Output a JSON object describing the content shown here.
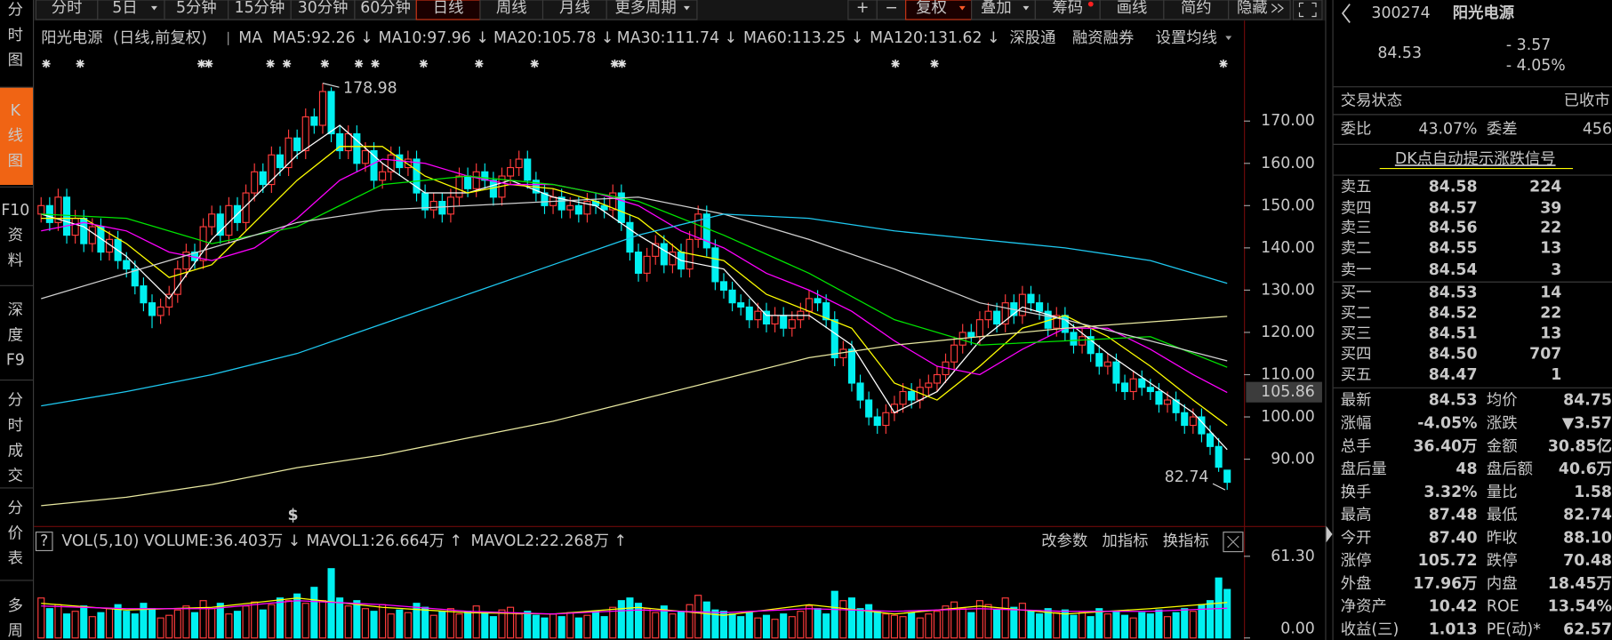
{
  "toolbar": {
    "tabs": [
      "分时",
      "5日",
      "5分钟",
      "15分钟",
      "30分钟",
      "60分钟",
      "日线",
      "周线",
      "月线",
      "更多周期"
    ],
    "active_tab": 6,
    "tools": [
      "+",
      "−",
      "复权",
      "叠加",
      "筹码",
      "画线",
      "简约",
      "隐藏"
    ],
    "active_tool": 2
  },
  "sidebar": {
    "items": [
      "分时图",
      "K线图",
      "F10资料",
      "深度F9",
      "分时成交",
      "分价表",
      "多周"
    ],
    "active": 1
  },
  "chart_data": {
    "type": "candlestick",
    "stock_name": "阳光电源",
    "period_label": "(日线,前复权)",
    "ma_label": "MA",
    "links": [
      "深股通",
      "融资融券",
      "设置均线"
    ],
    "up_color": "#ff3c3c",
    "down_color": "#00f0f0",
    "ylim": [
      74.68,
      186.5
    ],
    "yticks": [
      {
        "value": 90,
        "label": "90.00"
      },
      {
        "value": 100,
        "label": "100.00"
      },
      {
        "value": 110,
        "label": "110.00"
      },
      {
        "value": 120,
        "label": "120.00"
      },
      {
        "value": 130,
        "label": "130.00"
      },
      {
        "value": 140,
        "label": "140.00"
      },
      {
        "value": 150,
        "label": "150.00"
      },
      {
        "value": 160,
        "label": "160.00"
      },
      {
        "value": 170,
        "label": "170.00"
      }
    ],
    "grid": false,
    "cursor_price": 105.86,
    "dividend_marker": "$",
    "open": [
      148,
      150,
      146,
      152,
      143,
      147,
      141,
      145,
      139,
      142,
      137,
      135,
      131,
      127,
      124,
      126,
      129,
      135,
      139,
      137,
      145,
      148,
      143,
      150,
      146,
      153,
      158,
      155,
      162,
      159,
      166,
      163,
      171,
      169,
      177,
      167,
      163,
      167,
      160,
      163,
      156,
      158,
      162,
      159,
      161,
      153,
      149,
      151,
      148,
      152,
      157,
      154,
      158,
      156,
      152,
      157,
      159,
      161,
      156,
      153,
      150,
      152,
      149,
      150,
      148,
      151,
      150,
      149,
      153,
      146,
      139,
      134,
      138,
      141,
      136,
      139,
      135,
      142,
      148,
      140,
      132,
      130,
      127,
      126,
      123,
      125,
      122,
      124,
      121,
      123,
      125,
      128,
      127,
      123,
      114,
      116,
      108,
      104,
      100,
      98,
      101,
      103,
      106,
      104,
      107,
      108,
      110,
      113,
      117,
      120,
      119,
      123,
      125,
      122,
      127,
      124,
      129,
      127,
      125,
      121,
      124,
      120,
      117,
      119,
      115,
      112,
      113,
      108,
      106,
      109,
      107,
      106,
      103,
      104,
      101,
      98,
      100,
      96,
      93,
      87.4
    ],
    "high": [
      152,
      152,
      154,
      154,
      149,
      149,
      147,
      147,
      144,
      144,
      139,
      137,
      133,
      129,
      128,
      131,
      137,
      141,
      141,
      147,
      150,
      150,
      152,
      152,
      155,
      160,
      160,
      164,
      164,
      168,
      168,
      173,
      173,
      178.98,
      178,
      169,
      169,
      169,
      165,
      165,
      160,
      164,
      164,
      163,
      163,
      155,
      153,
      153,
      154,
      159,
      159,
      160,
      160,
      158,
      159,
      161,
      163,
      163,
      158,
      155,
      154,
      154,
      152,
      152,
      153,
      153,
      152,
      155,
      155,
      148,
      141,
      140,
      143,
      143,
      141,
      141,
      144,
      150,
      150,
      142,
      134,
      132,
      129,
      128,
      127,
      127,
      126,
      126,
      125,
      127,
      130,
      130,
      129,
      125,
      118,
      118,
      110,
      106,
      102,
      103,
      105,
      108,
      108,
      109,
      110,
      112,
      115,
      119,
      122,
      122,
      125,
      127,
      127,
      129,
      129,
      131,
      131,
      129,
      127,
      126,
      126,
      122,
      121,
      121,
      117,
      115,
      115,
      110,
      111,
      111,
      109,
      108,
      106,
      106,
      103,
      102,
      102,
      98,
      95,
      87.48
    ],
    "low": [
      146,
      144,
      144,
      141,
      141,
      139,
      139,
      137,
      137,
      135,
      133,
      129,
      125,
      121,
      122,
      124,
      127,
      133,
      135,
      135,
      143,
      141,
      141,
      144,
      144,
      151,
      153,
      153,
      157,
      157,
      161,
      161,
      167,
      167,
      165,
      161,
      161,
      158,
      158,
      154,
      154,
      156,
      157,
      157,
      151,
      147,
      147,
      146,
      146,
      150,
      152,
      152,
      154,
      150,
      150,
      155,
      157,
      154,
      151,
      148,
      148,
      147,
      147,
      146,
      146,
      148,
      147,
      147,
      144,
      137,
      132,
      132,
      136,
      134,
      134,
      133,
      133,
      140,
      138,
      130,
      128,
      125,
      124,
      121,
      121,
      120,
      120,
      119,
      119,
      121,
      123,
      125,
      121,
      112,
      112,
      106,
      102,
      98,
      96,
      96,
      99,
      101,
      102,
      102,
      105,
      106,
      108,
      111,
      115,
      117,
      117,
      121,
      120,
      120,
      122,
      122,
      125,
      123,
      119,
      119,
      118,
      115,
      115,
      113,
      110,
      110,
      106,
      104,
      104,
      105,
      104,
      101,
      101,
      99,
      96,
      96,
      94,
      91,
      87,
      82.74
    ],
    "close": [
      150,
      146,
      152,
      143,
      147,
      141,
      145,
      139,
      142,
      137,
      135,
      131,
      127,
      124,
      126,
      129,
      135,
      139,
      137,
      145,
      148,
      143,
      150,
      146,
      153,
      158,
      155,
      162,
      159,
      166,
      163,
      171,
      169,
      177,
      167,
      163,
      167,
      160,
      163,
      156,
      158,
      162,
      159,
      161,
      153,
      149,
      151,
      148,
      152,
      157,
      154,
      158,
      156,
      152,
      157,
      159,
      161,
      156,
      153,
      150,
      152,
      149,
      150,
      148,
      151,
      150,
      149,
      153,
      146,
      139,
      134,
      138,
      141,
      136,
      139,
      135,
      142,
      148,
      140,
      132,
      130,
      127,
      126,
      123,
      125,
      122,
      124,
      121,
      123,
      125,
      128,
      127,
      123,
      114,
      116,
      108,
      104,
      100,
      98,
      101,
      103,
      106,
      104,
      107,
      108,
      110,
      113,
      117,
      120,
      119,
      123,
      125,
      122,
      127,
      124,
      129,
      127,
      125,
      121,
      124,
      120,
      117,
      119,
      115,
      112,
      113,
      108,
      106,
      109,
      107,
      106,
      103,
      104,
      101,
      98,
      100,
      96,
      93,
      88.1,
      84.53
    ],
    "ma_lines": [
      {
        "label": "MA5:92.26 ↓",
        "color": "#ffffff",
        "x": [
          0,
          5,
          10,
          15,
          20,
          25,
          30,
          35,
          40,
          45,
          50,
          55,
          60,
          65,
          70,
          75,
          80,
          85,
          90,
          95,
          100,
          105,
          110,
          115,
          120,
          125,
          130,
          135,
          139
        ],
        "values": [
          148,
          145,
          138,
          128,
          142,
          152,
          162,
          169,
          160,
          153,
          153,
          156,
          152,
          150,
          143,
          137,
          135,
          124,
          124,
          117,
          101,
          106,
          118,
          126,
          123,
          115,
          108,
          101,
          92.26
        ]
      },
      {
        "label": "MA10:97.96 ↓",
        "color": "#ffff00",
        "x": [
          0,
          5,
          10,
          15,
          20,
          25,
          30,
          35,
          40,
          45,
          50,
          55,
          60,
          65,
          70,
          75,
          80,
          85,
          90,
          95,
          100,
          105,
          110,
          115,
          120,
          125,
          130,
          135,
          139
        ],
        "values": [
          147,
          147,
          141,
          133,
          136,
          146,
          156,
          164,
          164,
          157,
          153,
          155,
          154,
          151,
          147,
          139,
          137,
          129,
          125,
          121,
          108,
          104,
          112,
          121,
          124,
          119,
          112,
          104,
          97.96
        ]
      },
      {
        "label": "MA20:105.78 ↓",
        "color": "#ff00ff",
        "x": [
          0,
          5,
          10,
          15,
          20,
          25,
          30,
          35,
          40,
          45,
          50,
          55,
          60,
          65,
          70,
          75,
          80,
          85,
          90,
          95,
          100,
          105,
          110,
          115,
          120,
          125,
          130,
          135,
          139
        ],
        "values": [
          144,
          146,
          144,
          139,
          137,
          140,
          147,
          156,
          161,
          160,
          157,
          155,
          155,
          153,
          150,
          144,
          140,
          134,
          130,
          125,
          118,
          112,
          110,
          116,
          121,
          121,
          116,
          110,
          105.78
        ]
      },
      {
        "label": "MA30:111.74 ↓",
        "color": "#00e600",
        "x": [
          0,
          10,
          20,
          30,
          40,
          50,
          60,
          70,
          80,
          90,
          100,
          110,
          120,
          130,
          139
        ],
        "values": [
          148,
          147,
          141,
          145,
          155,
          157,
          155,
          151,
          143,
          134,
          123,
          117,
          118,
          119,
          111.74
        ]
      },
      {
        "label": "MA60:113.25 ↓",
        "color": "#d0d0d0",
        "x": [
          0,
          10,
          20,
          30,
          40,
          50,
          60,
          70,
          80,
          90,
          100,
          110,
          120,
          130,
          139
        ],
        "values": [
          128,
          134,
          140,
          146,
          149,
          150,
          151,
          152,
          148,
          142,
          135,
          127,
          123,
          118,
          113.25
        ]
      },
      {
        "label": "MA120:131.62 ↓",
        "color": "#1ec8f0",
        "x": [
          0,
          10,
          20,
          30,
          40,
          50,
          60,
          70,
          80,
          90,
          100,
          110,
          120,
          130,
          139
        ],
        "values": [
          102.6,
          106,
          110,
          115,
          122,
          129,
          136,
          143,
          148,
          147,
          144,
          142,
          140,
          137,
          131.62
        ]
      },
      {
        "color": "#e8e8a0",
        "x": [
          0,
          10,
          20,
          30,
          40,
          50,
          60,
          70,
          80,
          90,
          100,
          110,
          120,
          130,
          139
        ],
        "values": [
          79,
          81,
          84,
          88,
          91,
          95,
          99,
          104,
          109,
          114,
          117,
          119,
          121,
          122.5,
          123.8
        ]
      }
    ]
  },
  "volume_chart": {
    "type": "bar",
    "help": "?",
    "indicator_label": "VOL(5,10)",
    "volume_label": "VOLUME:36.403万 ↓",
    "buttons": [
      "改参数",
      "加指标",
      "换指标"
    ],
    "ylim": [
      0,
      64
    ],
    "yticks": [
      {
        "value": 0,
        "label": "0.00"
      },
      {
        "value": 61.3,
        "label": "61.30"
      }
    ],
    "values": [
      30,
      22,
      25,
      18,
      20,
      24,
      16,
      19,
      22,
      25,
      20,
      18,
      26,
      22,
      15,
      17,
      21,
      24,
      19,
      28,
      22,
      26,
      18,
      20,
      24,
      27,
      21,
      25,
      30,
      28,
      33,
      26,
      38,
      28,
      52,
      30,
      24,
      28,
      22,
      20,
      25,
      18,
      21,
      19,
      26,
      23,
      17,
      20,
      22,
      18,
      20,
      24,
      19,
      16,
      21,
      23,
      18,
      20,
      17,
      15,
      18,
      16,
      19,
      15,
      17,
      20,
      16,
      23,
      28,
      30,
      26,
      22,
      19,
      24,
      18,
      20,
      25,
      32,
      27,
      21,
      20,
      18,
      16,
      19,
      15,
      17,
      14,
      18,
      16,
      20,
      24,
      22,
      18,
      35,
      28,
      30,
      22,
      25,
      20,
      18,
      17,
      16,
      19,
      15,
      18,
      20,
      24,
      27,
      22,
      19,
      28,
      25,
      21,
      30,
      23,
      26,
      20,
      18,
      22,
      19,
      21,
      17,
      19,
      16,
      22,
      18,
      20,
      17,
      15,
      19,
      18,
      21,
      16,
      19,
      22,
      20,
      25,
      28,
      45,
      36.403
    ],
    "lines": [
      {
        "label": "MAVOL1:26.664万 ↑",
        "color": "#ffff00",
        "x": [
          0,
          10,
          20,
          30,
          40,
          50,
          60,
          70,
          80,
          90,
          100,
          110,
          120,
          130,
          139
        ],
        "values": [
          26,
          21,
          23,
          30,
          23,
          19,
          18,
          23,
          17,
          25,
          18,
          24,
          18,
          22,
          26.664
        ]
      },
      {
        "label": "MAVOL2:22.268万 ↑",
        "color": "#ff00ff",
        "x": [
          0,
          10,
          20,
          30,
          40,
          50,
          60,
          70,
          80,
          90,
          100,
          110,
          120,
          130,
          139
        ],
        "values": [
          24,
          22,
          22,
          28,
          25,
          20,
          18,
          21,
          19,
          22,
          20,
          22,
          20,
          20,
          22.268
        ]
      }
    ]
  },
  "quote": {
    "code": "300274",
    "name": "阳光电源",
    "price": "84.53",
    "change": "- 3.57",
    "change_pct": "- 4.05%"
  },
  "status": {
    "label": "交易状态",
    "value": "已收市"
  },
  "commission": {
    "ratio_label": "委比",
    "ratio": "43.07%",
    "diff_label": "委差",
    "diff": "456"
  },
  "signal_link": "DK点自动提示涨跌信号",
  "order_book": [
    {
      "label": "卖五",
      "price": "84.58",
      "volume": "224"
    },
    {
      "label": "卖四",
      "price": "84.57",
      "volume": "39"
    },
    {
      "label": "卖三",
      "price": "84.56",
      "volume": "22"
    },
    {
      "label": "卖二",
      "price": "84.55",
      "volume": "13"
    },
    {
      "label": "卖一",
      "price": "84.54",
      "volume": "3"
    },
    {
      "label": "买一",
      "price": "84.53",
      "volume": "14"
    },
    {
      "label": "买二",
      "price": "84.52",
      "volume": "22"
    },
    {
      "label": "买三",
      "price": "84.51",
      "volume": "13"
    },
    {
      "label": "买四",
      "price": "84.50",
      "volume": "707"
    },
    {
      "label": "买五",
      "price": "84.47",
      "volume": "1"
    }
  ],
  "stats": [
    [
      {
        "label": "最新",
        "value": "84.53",
        "color": "#22e622"
      },
      {
        "label": "均价",
        "value": "84.75",
        "color": "#22e622"
      }
    ],
    [
      {
        "label": "涨幅",
        "value": "-4.05%",
        "color": "#22e622"
      },
      {
        "label": "涨跌",
        "value": "▼3.57",
        "color": "#22e622"
      }
    ],
    [
      {
        "label": "总手",
        "value": "36.40万",
        "color": "#f0f0c8"
      },
      {
        "label": "金额",
        "value": "30.85亿",
        "color": "#00e6e6"
      }
    ],
    [
      {
        "label": "盘后量",
        "value": "48",
        "color": "#f0f0c8"
      },
      {
        "label": "盘后额",
        "value": "40.6万",
        "color": "#00e6e6"
      }
    ],
    [
      {
        "label": "换手",
        "value": "3.32%",
        "color": "#f0f0c8"
      },
      {
        "label": "量比",
        "value": "1.58",
        "color": "#ff4040"
      }
    ],
    [
      {
        "label": "最高",
        "value": "87.48",
        "color": "#22e622"
      },
      {
        "label": "最低",
        "value": "82.74",
        "color": "#22e622"
      }
    ],
    [
      {
        "label": "今开",
        "value": "87.40",
        "color": "#22e622"
      },
      {
        "label": "昨收",
        "value": "88.10",
        "color": "#f0f0f0"
      }
    ],
    [
      {
        "label": "涨停",
        "value": "105.72",
        "color": "#ff4040"
      },
      {
        "label": "跌停",
        "value": "70.48",
        "color": "#22e622"
      }
    ],
    [
      {
        "label": "外盘",
        "value": "17.96万",
        "color": "#ff4040"
      },
      {
        "label": "内盘",
        "value": "18.45万",
        "color": "#22e622"
      }
    ],
    [
      {
        "label": "净资产",
        "value": "10.42",
        "color": "#f0f0c8"
      },
      {
        "label": "ROE",
        "value": "13.54%",
        "color": "#f0f0c8"
      }
    ],
    [
      {
        "label": "收益(三)",
        "value": "1.013",
        "color": "#f0f0c8"
      },
      {
        "label": "PE(动)*",
        "value": "62.57",
        "color": "#f0f0c8"
      }
    ]
  ]
}
